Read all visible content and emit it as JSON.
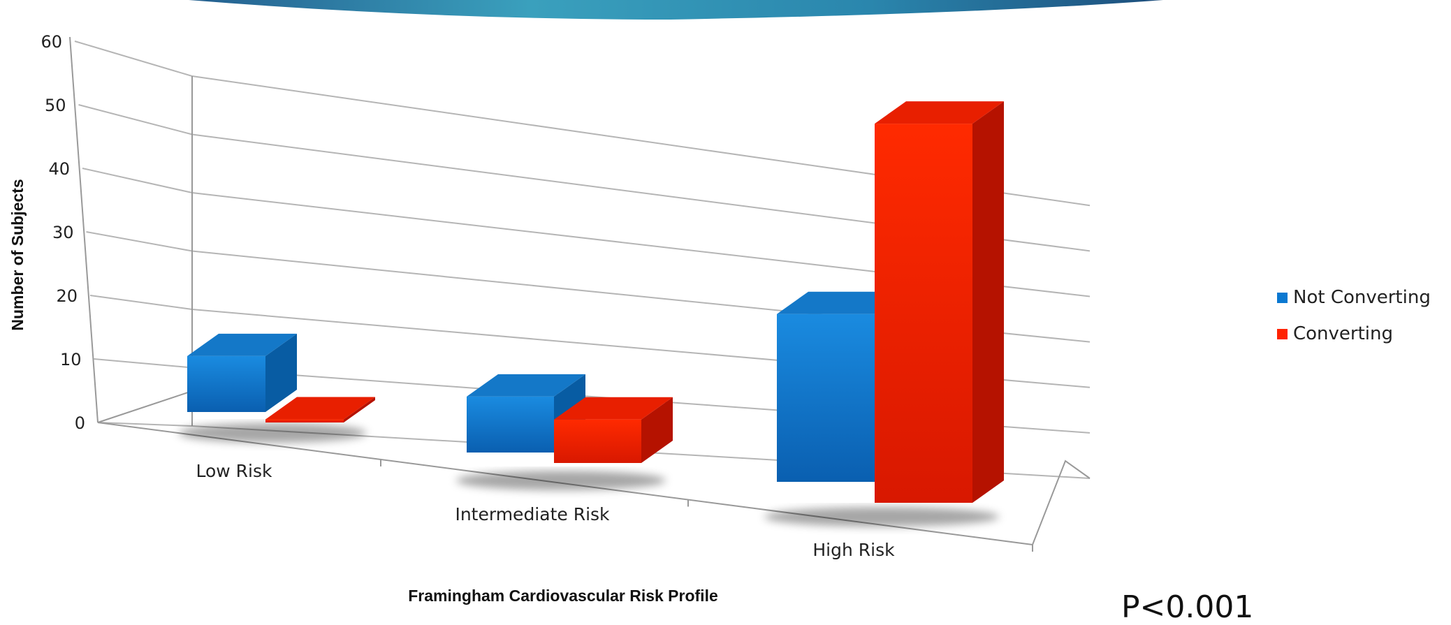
{
  "chart_data": {
    "type": "bar",
    "style": "3d-clustered-column",
    "categories": [
      "Low Risk",
      "Intermediate Risk",
      "High Risk"
    ],
    "series": [
      {
        "name": "Not Converting",
        "values": [
          9,
          9,
          27
        ],
        "color": "#0a78d1"
      },
      {
        "name": "Converting",
        "values": [
          0.5,
          7,
          61
        ],
        "color": "#ff2200"
      }
    ],
    "xlabel": "Framingham Cardiovascular Risk Profile",
    "ylabel": "Number of Subjects",
    "ylim": [
      0,
      60
    ],
    "yticks": [
      0,
      10,
      20,
      30,
      40,
      50,
      60
    ],
    "grid": true,
    "legend": "right"
  },
  "annotation": {
    "p_value": "P<0.001"
  },
  "colors": {
    "banner_dark": "#1e5f8c",
    "banner_light": "#3fa3bf"
  }
}
